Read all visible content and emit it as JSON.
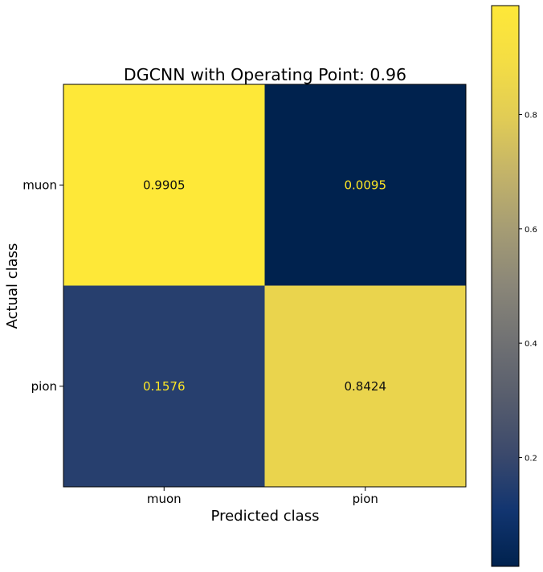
{
  "chart_data": {
    "type": "heatmap",
    "title": "DGCNN with Operating Point: 0.96",
    "xlabel": "Predicted class",
    "ylabel": "Actual class",
    "x_categories": [
      "muon",
      "pion"
    ],
    "y_categories": [
      "muon",
      "pion"
    ],
    "values": [
      [
        0.9905,
        0.0095
      ],
      [
        0.1576,
        0.8424
      ]
    ],
    "value_labels": [
      [
        "0.9905",
        "0.0095"
      ],
      [
        "0.1576",
        "0.8424"
      ]
    ],
    "colormap": "cividis",
    "colorbar": {
      "range": [
        0.0095,
        0.9905
      ],
      "ticks": [
        0.2,
        0.4,
        0.6,
        0.8
      ],
      "tick_labels": [
        "0.2",
        "0.4",
        "0.6",
        "0.8"
      ],
      "placement": "right"
    },
    "annotation_colors": {
      "on_dark": "#fde725",
      "on_light": "#111111"
    }
  }
}
